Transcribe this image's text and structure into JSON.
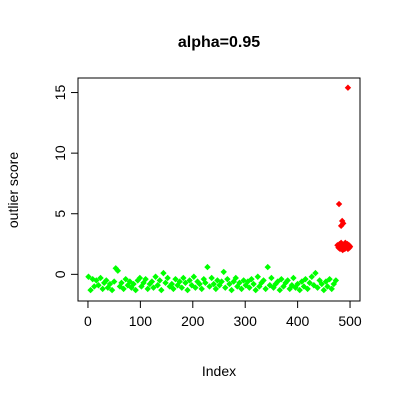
{
  "chart_data": {
    "type": "scatter",
    "title": "alpha=0.95",
    "xlabel": "Index",
    "ylabel": "outlier score",
    "xlim": [
      -19,
      519
    ],
    "ylim": [
      -2.2,
      16.2
    ],
    "xticks": [
      0,
      100,
      200,
      300,
      400,
      500
    ],
    "yticks": [
      0,
      5,
      10,
      15
    ],
    "grid": false,
    "legend": "none",
    "marker": "diamond",
    "colors": {
      "inlier": "#00ff00",
      "outlier": "#ff0000"
    },
    "n_points": 500,
    "series": [
      {
        "x": [
          1,
          5,
          9,
          12,
          16,
          20,
          24,
          28,
          31,
          35,
          38,
          42,
          46,
          50,
          53,
          57,
          61,
          64,
          68,
          72,
          76,
          80,
          83,
          87,
          91,
          95,
          99,
          102,
          106,
          110,
          114,
          118,
          122,
          125,
          129,
          133,
          137,
          140,
          144,
          148,
          152,
          156,
          160,
          163,
          167,
          171,
          175,
          179,
          182,
          186,
          190,
          194,
          198,
          202,
          205,
          209,
          213,
          217,
          221,
          224,
          228,
          232,
          236,
          240,
          244,
          247,
          251,
          255,
          259,
          262,
          266,
          270,
          274,
          278,
          282,
          285,
          289,
          293,
          297,
          301,
          305,
          308,
          312,
          316,
          320,
          324,
          327,
          331,
          335,
          339,
          343,
          347,
          350,
          354,
          358,
          362,
          366,
          369,
          373,
          377,
          381,
          385,
          389,
          392,
          396,
          400,
          404,
          408,
          412,
          415,
          419,
          423,
          427,
          431,
          434,
          438,
          442,
          446,
          450,
          454,
          457,
          461,
          465,
          469,
          473
        ],
        "y": [
          -0.2,
          -1.3,
          -0.4,
          -1.0,
          -0.5,
          -0.9,
          -0.3,
          -1.2,
          -0.7,
          -0.5,
          -1.1,
          -0.8,
          -1.3,
          -0.6,
          0.5,
          0.3,
          -1.0,
          -0.7,
          -1.2,
          -0.4,
          -0.9,
          -0.6,
          -1.1,
          -0.8,
          -1.3,
          -0.5,
          -0.3,
          -1.0,
          -0.7,
          -0.4,
          -1.2,
          -0.8,
          -0.6,
          -1.1,
          -0.2,
          -0.9,
          -0.5,
          -1.3,
          0.1,
          -0.7,
          -0.3,
          -1.0,
          -0.8,
          -1.2,
          -0.4,
          -0.9,
          -0.6,
          -1.1,
          -0.3,
          -0.7,
          -1.3,
          -0.5,
          -0.9,
          -0.2,
          -1.1,
          -0.6,
          -0.8,
          -1.2,
          -0.4,
          -0.7,
          0.6,
          -1.0,
          -0.3,
          -0.8,
          -1.2,
          -0.5,
          -0.9,
          -0.6,
          0.2,
          -1.1,
          -0.4,
          -0.8,
          -1.3,
          -0.6,
          -0.3,
          -1.0,
          -0.7,
          -1.2,
          -0.5,
          -0.9,
          -0.6,
          -1.1,
          -0.4,
          -0.8,
          -1.3,
          -0.2,
          -1.0,
          -0.7,
          -0.5,
          -1.2,
          0.6,
          -0.9,
          -0.3,
          -1.1,
          -0.8,
          -0.6,
          -1.3,
          -0.4,
          -1.0,
          -0.7,
          -0.5,
          -1.2,
          -0.9,
          -0.3,
          -1.1,
          -0.8,
          -1.3,
          -0.6,
          -1.0,
          -0.4,
          -1.2,
          -0.7,
          -0.2,
          -0.9,
          0.1,
          -1.1,
          -0.5,
          -0.8,
          -1.3,
          -0.6,
          -1.0,
          -0.4,
          -1.2,
          -0.8,
          -0.5
        ]
      },
      {
        "x": [
          476,
          478,
          480,
          481,
          483,
          484,
          486,
          487,
          488,
          489,
          490,
          491,
          492,
          493,
          494,
          495,
          496,
          497,
          498,
          499,
          500,
          479,
          483,
          485,
          487,
          496
        ],
        "y": [
          2.4,
          2.2,
          2.5,
          2.1,
          2.6,
          2.3,
          2.0,
          2.4,
          2.2,
          2.5,
          2.1,
          2.6,
          2.3,
          2.4,
          2.2,
          2.5,
          2.1,
          2.3,
          2.4,
          2.2,
          2.3,
          5.8,
          4.0,
          4.4,
          4.2,
          15.4
        ]
      }
    ]
  }
}
